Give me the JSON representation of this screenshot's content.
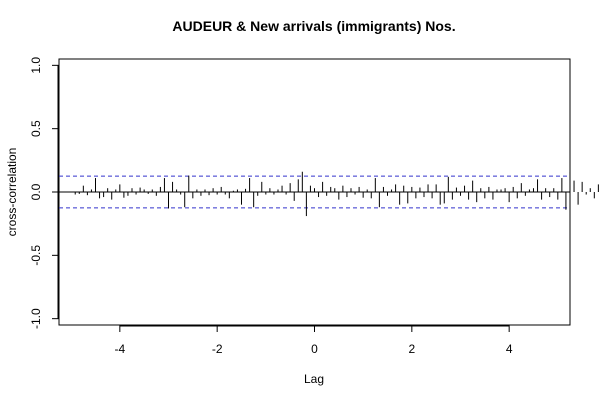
{
  "chart_data": {
    "type": "bar",
    "title": "AUDEUR & New arrivals (immigrants) Nos.",
    "xlabel": "Lag",
    "ylabel": "cross-correlation",
    "xlim": [
      -5.25,
      5.25
    ],
    "ylim": [
      -1.05,
      1.05
    ],
    "x_ticks": [
      -4,
      -2,
      0,
      2,
      4
    ],
    "y_ticks": [
      -1.0,
      -0.5,
      0.0,
      0.5,
      1.0
    ],
    "x_tick_labels": [
      "-4",
      "-2",
      "0",
      "2",
      "4"
    ],
    "y_tick_labels": [
      "-1.0",
      "-0.5",
      "0.0",
      "0.5",
      "1.0"
    ],
    "confidence_bounds": [
      0.125,
      -0.125
    ],
    "bound_color": "#3333cc",
    "lag_step": 0.08333,
    "lag_start": -4.91667,
    "values": [
      -0.02,
      -0.015,
      0.05,
      -0.025,
      0.02,
      0.11,
      -0.05,
      -0.04,
      0.03,
      -0.06,
      0.02,
      0.06,
      -0.045,
      -0.03,
      0.03,
      -0.02,
      0.035,
      0.02,
      -0.015,
      0.02,
      -0.03,
      0.04,
      0.11,
      -0.13,
      0.08,
      0.02,
      -0.02,
      -0.12,
      0.13,
      -0.05,
      0.02,
      -0.03,
      0.02,
      -0.025,
      0.03,
      -0.02,
      0.04,
      -0.02,
      -0.05,
      0.01,
      0.02,
      -0.1,
      0.025,
      0.11,
      -0.12,
      -0.03,
      0.08,
      -0.02,
      0.03,
      -0.02,
      0.02,
      0.05,
      -0.02,
      0.07,
      -0.07,
      0.1,
      0.16,
      -0.19,
      0.05,
      0.03,
      -0.04,
      0.08,
      -0.03,
      0.04,
      0.03,
      -0.06,
      0.05,
      -0.04,
      0.03,
      -0.02,
      0.04,
      -0.045,
      0.02,
      -0.05,
      0.11,
      -0.12,
      0.04,
      -0.03,
      0.02,
      0.06,
      -0.1,
      0.05,
      -0.09,
      0.04,
      -0.05,
      0.035,
      -0.04,
      0.06,
      -0.05,
      0.06,
      -0.1,
      -0.09,
      0.12,
      -0.06,
      0.035,
      -0.03,
      0.05,
      -0.06,
      0.09,
      -0.08,
      0.03,
      -0.05,
      0.04,
      -0.06,
      0.02,
      0.02,
      0.03,
      -0.08,
      0.04,
      -0.05,
      0.07,
      -0.03,
      0.02,
      0.03,
      0.1,
      -0.06,
      0.03,
      -0.04,
      0.03,
      -0.06,
      0.11,
      -0.14,
      0.16,
      0.09,
      -0.1,
      0.08,
      -0.02,
      0.03,
      -0.05,
      0.06,
      0.02,
      0.04,
      -0.02,
      0.02
    ]
  }
}
